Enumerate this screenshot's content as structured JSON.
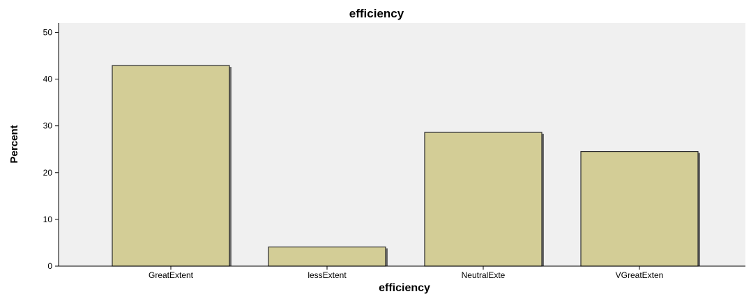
{
  "chart_data": {
    "type": "bar",
    "title": "efficiency",
    "xlabel": "efficiency",
    "ylabel": "Percent",
    "categories": [
      "GreatExtent",
      "lessExtent",
      "NeutralExte",
      "VGreatExten"
    ],
    "values": [
      42.9,
      4.1,
      28.6,
      24.5
    ],
    "ylim": [
      0,
      52
    ],
    "yticks": [
      0,
      10,
      20,
      30,
      40,
      50
    ],
    "grid": false,
    "legend": "none",
    "colors": {
      "bar_fill": "#d3cd96",
      "bar_stroke": "#2a2a2a",
      "plot_background": "#f0f0f0",
      "axis": "#000000"
    }
  }
}
